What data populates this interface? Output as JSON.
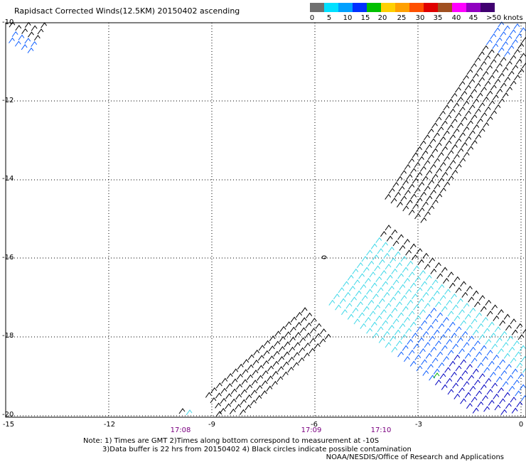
{
  "title": "Rapidsact Corrected Winds(12.5KM) 20150402 ascending",
  "legend": {
    "labels": [
      "0",
      "5",
      "10",
      "15",
      "20",
      "25",
      "30",
      "35",
      "40",
      "45",
      ">50 knots"
    ],
    "colors": [
      "#707070",
      "#00e0ff",
      "#00a0ff",
      "#0030ff",
      "#00c000",
      "#ffd000",
      "#ffa000",
      "#ff5000",
      "#e00000",
      "#a05020",
      "#ff00ff",
      "#9000c0",
      "#400070"
    ]
  },
  "axes": {
    "lat_labels": [
      "-10",
      "-12",
      "-14",
      "-16",
      "-18",
      "-20"
    ],
    "lon_labels": [
      "-15",
      "-12",
      "-9",
      "-6",
      "-3",
      "0"
    ]
  },
  "times": [
    "17:08",
    "17:09",
    "17:10"
  ],
  "notes": {
    "line1": "Note: 1) Times are GMT 2)Times along bottom correspond to measurement at -10S",
    "line2": "3)Data buffer is 22 hrs from 20150402 4) Black circles indicate possible contamination"
  },
  "credit": "NOAA/NESDIS/Office of Research and Applications",
  "swath_colors": {
    "low": "#000000",
    "light": "#40d8e8",
    "mid": "#1060ff",
    "strong": "#0000c0",
    "green": "#00b000"
  }
}
